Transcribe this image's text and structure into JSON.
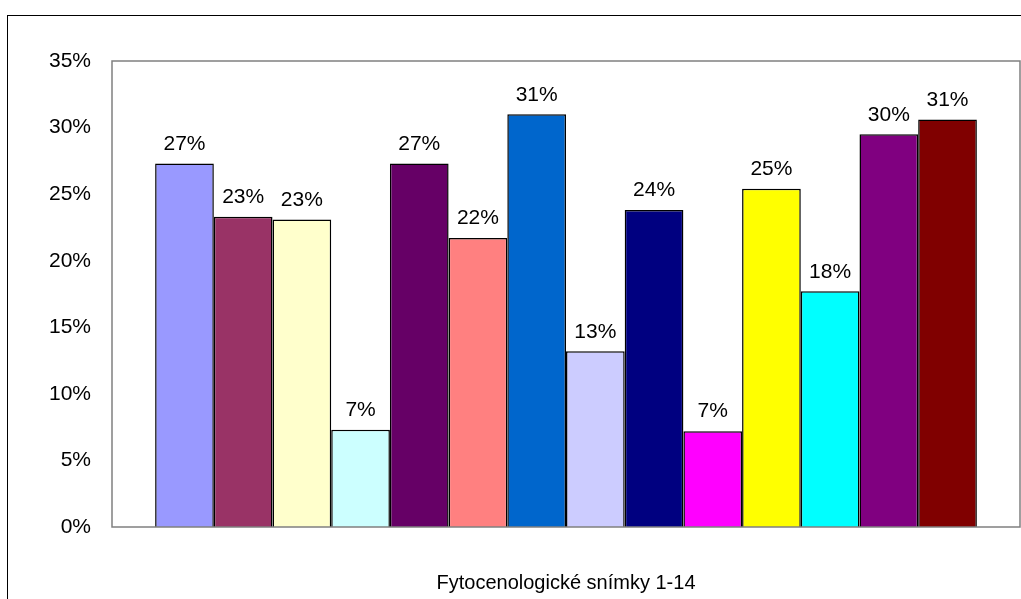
{
  "chart_data": {
    "type": "bar",
    "xlabel": "Fytocenologické snímky 1-14",
    "categories": [
      null
    ],
    "series": [
      {
        "color": "#9999ff",
        "values": [
          27.3
        ],
        "value_labels": [
          "27%"
        ]
      },
      {
        "color": "#993366",
        "values": [
          23.3
        ],
        "value_labels": [
          "23%"
        ]
      },
      {
        "color": "#ffffcc",
        "values": [
          23.1
        ],
        "value_labels": [
          "23%"
        ]
      },
      {
        "color": "#ccffff",
        "values": [
          7.3
        ],
        "value_labels": [
          "7%"
        ]
      },
      {
        "color": "#660066",
        "values": [
          27.3
        ],
        "value_labels": [
          "27%"
        ]
      },
      {
        "color": "#ff8080",
        "values": [
          21.7
        ],
        "value_labels": [
          "22%"
        ]
      },
      {
        "color": "#0066cc",
        "values": [
          31.0
        ],
        "value_labels": [
          "31%"
        ]
      },
      {
        "color": "#ccccff",
        "values": [
          13.2
        ],
        "value_labels": [
          "13%"
        ]
      },
      {
        "color": "#000080",
        "values": [
          23.8
        ],
        "value_labels": [
          "24%"
        ]
      },
      {
        "color": "#ff00ff",
        "values": [
          7.2
        ],
        "value_labels": [
          "7%"
        ]
      },
      {
        "color": "#ffff00",
        "values": [
          25.4
        ],
        "value_labels": [
          "25%"
        ]
      },
      {
        "color": "#00ffff",
        "values": [
          17.7
        ],
        "value_labels": [
          "18%"
        ]
      },
      {
        "color": "#800080",
        "values": [
          29.5
        ],
        "value_labels": [
          "30%"
        ]
      },
      {
        "color": "#800000",
        "values": [
          30.6
        ],
        "value_labels": [
          "31%"
        ]
      }
    ],
    "ylim": [
      0,
      35
    ],
    "yticks": [
      {
        "value": 0,
        "label": "0%"
      },
      {
        "value": 5,
        "label": "5%"
      },
      {
        "value": 10,
        "label": "10%"
      },
      {
        "value": 15,
        "label": "15%"
      },
      {
        "value": 20,
        "label": "20%"
      },
      {
        "value": 25,
        "label": "25%"
      },
      {
        "value": 30,
        "label": "30%"
      },
      {
        "value": 35,
        "label": "35%"
      }
    ],
    "grid": false,
    "legend": false
  }
}
